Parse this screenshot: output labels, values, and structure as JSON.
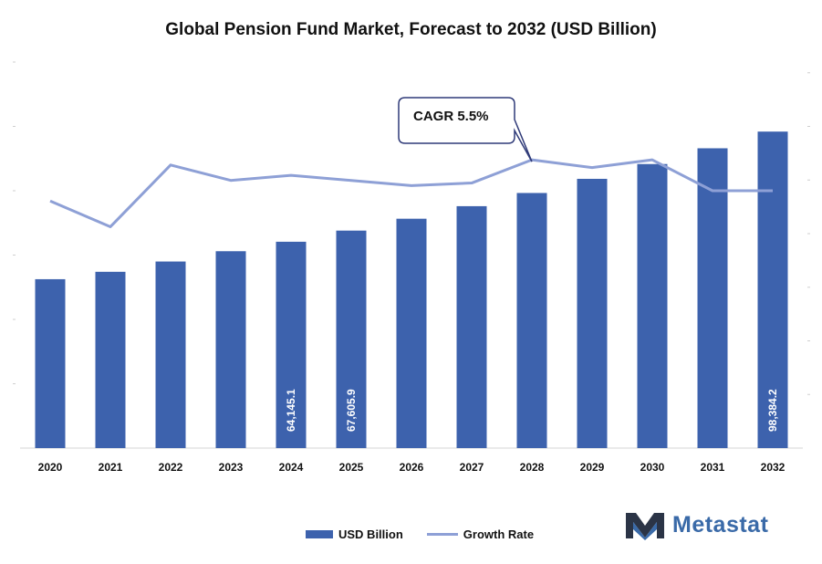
{
  "chart_data": {
    "type": "bar",
    "title": "Global Pension Fund Market, Forecast to 2032 (USD Billion)",
    "categories": [
      "2020",
      "2021",
      "2022",
      "2023",
      "2024",
      "2025",
      "2026",
      "2027",
      "2028",
      "2029",
      "2030",
      "2031",
      "2032"
    ],
    "series": [
      {
        "name": "USD Billion",
        "type": "bar",
        "color": "#3d62ad",
        "values": [
          52500,
          54800,
          58000,
          61200,
          64145.1,
          67605.9,
          71300,
          75200,
          79300,
          83700,
          88300,
          93200,
          98384.2
        ]
      },
      {
        "name": "Growth Rate",
        "type": "line",
        "color": "#8ea0d6",
        "values": [
          4.8,
          4.3,
          5.5,
          5.2,
          5.3,
          5.2,
          5.1,
          5.15,
          5.6,
          5.45,
          5.6,
          5.0,
          5.0
        ]
      }
    ],
    "data_labels": [
      {
        "category": "2024",
        "text": "64,145.1"
      },
      {
        "category": "2025",
        "text": "67,605.9"
      },
      {
        "category": "2032",
        "text": "98,384.2"
      }
    ],
    "annotation": "CAGR 5.5%",
    "ylim": [
      0,
      120000
    ],
    "y2lim": [
      0,
      7.5
    ],
    "legend_position": "bottom",
    "grid": false
  },
  "brand": {
    "name": "Metastat",
    "colors": {
      "primary": "#3a6aa8",
      "dark": "#2b3446"
    }
  }
}
